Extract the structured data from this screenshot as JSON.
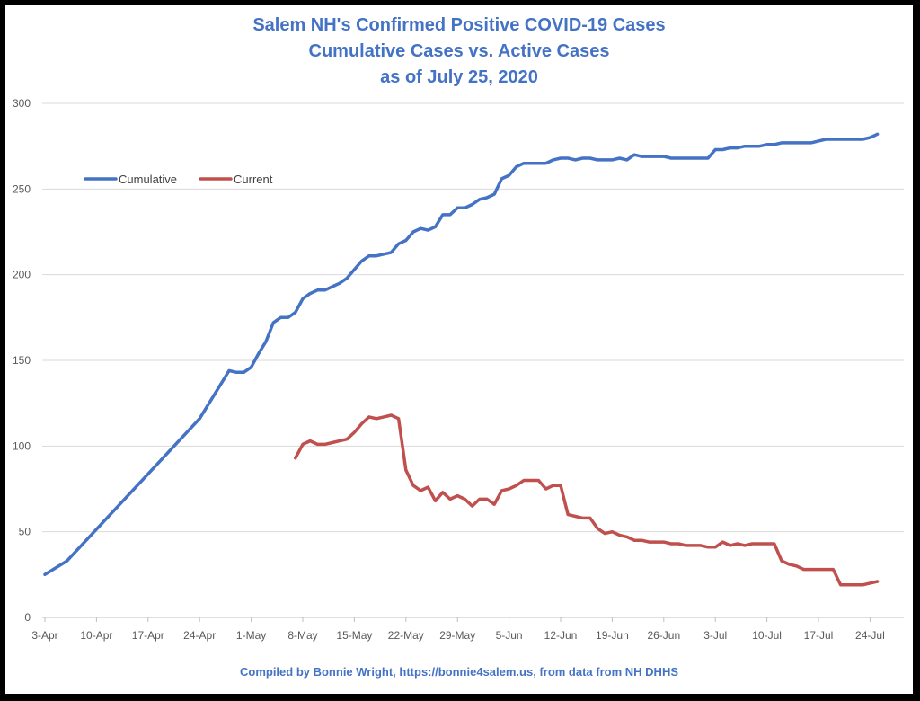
{
  "title_lines": [
    "Salem NH's Confirmed Positive COVID-19 Cases",
    "Cumulative Cases vs. Active Cases",
    "as  of July 25, 2020"
  ],
  "footer": "Compiled by Bonnie Wright, https://bonnie4salem.us, from data from NH DHHS",
  "colors": {
    "cumulative": "#4472C4",
    "current": "#C0504D",
    "title": "#4472C4",
    "grid": "#D9D9D9",
    "axis_text": "#595959"
  },
  "chart_data": {
    "type": "line",
    "x_unit": "day number in 2020 (Apr 3 = day 0)",
    "xlim": [
      0,
      113
    ],
    "ylim": [
      0,
      300
    ],
    "y_ticks": [
      0,
      50,
      100,
      150,
      200,
      250,
      300
    ],
    "x_ticks": [
      {
        "label": "3-Apr",
        "x": 0
      },
      {
        "label": "10-Apr",
        "x": 7
      },
      {
        "label": "17-Apr",
        "x": 14
      },
      {
        "label": "24-Apr",
        "x": 21
      },
      {
        "label": "1-May",
        "x": 28
      },
      {
        "label": "8-May",
        "x": 35
      },
      {
        "label": "15-May",
        "x": 42
      },
      {
        "label": "22-May",
        "x": 49
      },
      {
        "label": "29-May",
        "x": 56
      },
      {
        "label": "5-Jun",
        "x": 63
      },
      {
        "label": "12-Jun",
        "x": 70
      },
      {
        "label": "19-Jun",
        "x": 77
      },
      {
        "label": "26-Jun",
        "x": 84
      },
      {
        "label": "3-Jul",
        "x": 91
      },
      {
        "label": "10-Jul",
        "x": 98
      },
      {
        "label": "17-Jul",
        "x": 105
      },
      {
        "label": "24-Jul",
        "x": 112
      }
    ],
    "legend_position": "top-left",
    "grid": "horizontal",
    "series": [
      {
        "name": "Cumulative",
        "color_key": "cumulative",
        "points": [
          [
            0,
            25
          ],
          [
            3,
            33
          ],
          [
            21,
            116
          ],
          [
            25,
            144
          ],
          [
            26,
            143
          ],
          [
            27,
            143
          ],
          [
            28,
            146
          ],
          [
            29,
            154
          ],
          [
            30,
            161
          ],
          [
            31,
            172
          ],
          [
            32,
            175
          ],
          [
            33,
            175
          ],
          [
            34,
            178
          ],
          [
            35,
            186
          ],
          [
            36,
            189
          ],
          [
            37,
            191
          ],
          [
            38,
            191
          ],
          [
            39,
            193
          ],
          [
            40,
            195
          ],
          [
            41,
            198
          ],
          [
            42,
            203
          ],
          [
            43,
            208
          ],
          [
            44,
            211
          ],
          [
            45,
            211
          ],
          [
            46,
            212
          ],
          [
            47,
            213
          ],
          [
            48,
            218
          ],
          [
            49,
            220
          ],
          [
            50,
            225
          ],
          [
            51,
            227
          ],
          [
            52,
            226
          ],
          [
            53,
            228
          ],
          [
            54,
            235
          ],
          [
            55,
            235
          ],
          [
            56,
            239
          ],
          [
            57,
            239
          ],
          [
            58,
            241
          ],
          [
            59,
            244
          ],
          [
            60,
            245
          ],
          [
            61,
            247
          ],
          [
            62,
            256
          ],
          [
            63,
            258
          ],
          [
            64,
            263
          ],
          [
            65,
            265
          ],
          [
            66,
            265
          ],
          [
            67,
            265
          ],
          [
            68,
            265
          ],
          [
            69,
            267
          ],
          [
            70,
            268
          ],
          [
            71,
            268
          ],
          [
            72,
            267
          ],
          [
            73,
            268
          ],
          [
            74,
            268
          ],
          [
            75,
            267
          ],
          [
            76,
            267
          ],
          [
            77,
            267
          ],
          [
            78,
            268
          ],
          [
            79,
            267
          ],
          [
            80,
            270
          ],
          [
            81,
            269
          ],
          [
            82,
            269
          ],
          [
            83,
            269
          ],
          [
            84,
            269
          ],
          [
            85,
            268
          ],
          [
            86,
            268
          ],
          [
            87,
            268
          ],
          [
            88,
            268
          ],
          [
            89,
            268
          ],
          [
            90,
            268
          ],
          [
            91,
            273
          ],
          [
            92,
            273
          ],
          [
            93,
            274
          ],
          [
            94,
            274
          ],
          [
            95,
            275
          ],
          [
            96,
            275
          ],
          [
            97,
            275
          ],
          [
            98,
            276
          ],
          [
            99,
            276
          ],
          [
            100,
            277
          ],
          [
            101,
            277
          ],
          [
            102,
            277
          ],
          [
            103,
            277
          ],
          [
            104,
            277
          ],
          [
            105,
            278
          ],
          [
            106,
            279
          ],
          [
            107,
            279
          ],
          [
            108,
            279
          ],
          [
            109,
            279
          ],
          [
            110,
            279
          ],
          [
            111,
            279
          ],
          [
            112,
            280
          ],
          [
            113,
            282
          ]
        ]
      },
      {
        "name": "Current",
        "color_key": "current",
        "points": [
          [
            34,
            93
          ],
          [
            35,
            101
          ],
          [
            36,
            103
          ],
          [
            37,
            101
          ],
          [
            38,
            101
          ],
          [
            39,
            102
          ],
          [
            40,
            103
          ],
          [
            41,
            104
          ],
          [
            42,
            108
          ],
          [
            43,
            113
          ],
          [
            44,
            117
          ],
          [
            45,
            116
          ],
          [
            46,
            117
          ],
          [
            47,
            118
          ],
          [
            48,
            116
          ],
          [
            49,
            86
          ],
          [
            50,
            77
          ],
          [
            51,
            74
          ],
          [
            52,
            76
          ],
          [
            53,
            68
          ],
          [
            54,
            73
          ],
          [
            55,
            69
          ],
          [
            56,
            71
          ],
          [
            57,
            69
          ],
          [
            58,
            65
          ],
          [
            59,
            69
          ],
          [
            60,
            69
          ],
          [
            61,
            66
          ],
          [
            62,
            74
          ],
          [
            63,
            75
          ],
          [
            64,
            77
          ],
          [
            65,
            80
          ],
          [
            66,
            80
          ],
          [
            67,
            80
          ],
          [
            68,
            75
          ],
          [
            69,
            77
          ],
          [
            70,
            77
          ],
          [
            71,
            60
          ],
          [
            72,
            59
          ],
          [
            73,
            58
          ],
          [
            74,
            58
          ],
          [
            75,
            52
          ],
          [
            76,
            49
          ],
          [
            77,
            50
          ],
          [
            78,
            48
          ],
          [
            79,
            47
          ],
          [
            80,
            45
          ],
          [
            81,
            45
          ],
          [
            82,
            44
          ],
          [
            83,
            44
          ],
          [
            84,
            44
          ],
          [
            85,
            43
          ],
          [
            86,
            43
          ],
          [
            87,
            42
          ],
          [
            88,
            42
          ],
          [
            89,
            42
          ],
          [
            90,
            41
          ],
          [
            91,
            41
          ],
          [
            92,
            44
          ],
          [
            93,
            42
          ],
          [
            94,
            43
          ],
          [
            95,
            42
          ],
          [
            96,
            43
          ],
          [
            97,
            43
          ],
          [
            98,
            43
          ],
          [
            99,
            43
          ],
          [
            100,
            33
          ],
          [
            101,
            31
          ],
          [
            102,
            30
          ],
          [
            103,
            28
          ],
          [
            104,
            28
          ],
          [
            105,
            28
          ],
          [
            106,
            28
          ],
          [
            107,
            28
          ],
          [
            108,
            19
          ],
          [
            109,
            19
          ],
          [
            110,
            19
          ],
          [
            111,
            19
          ],
          [
            112,
            20
          ],
          [
            113,
            21
          ]
        ]
      }
    ]
  }
}
